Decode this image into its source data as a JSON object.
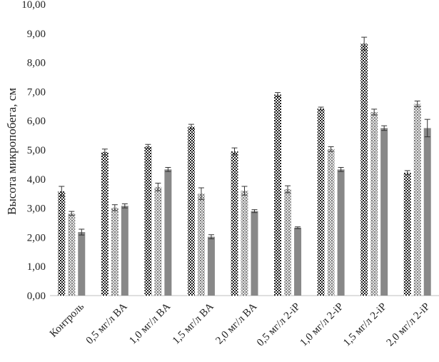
{
  "chart_data": {
    "type": "bar",
    "title": "",
    "xlabel": "",
    "ylabel": "Высота микропобега, см",
    "ylim": [
      0,
      10
    ],
    "yticks": [
      "0,00",
      "1,00",
      "2,00",
      "3,00",
      "4,00",
      "5,00",
      "6,00",
      "7,00",
      "8,00",
      "9,00",
      "10,00"
    ],
    "grid": false,
    "legend": "none",
    "categories": [
      "Контроль",
      "0,5 мг/л BA",
      "1,0 мг/л BA",
      "1,5 мг/л BA",
      "2,0 мг/л BA",
      "0,5 мг/л 2-iP",
      "1,0 мг/л 2-iP",
      "1,5 мг/л 2-iP",
      "2,0 мг/л 2-iP"
    ],
    "series": [
      {
        "pattern": "checker",
        "color": "#222222",
        "values": [
          3.58,
          4.93,
          5.12,
          5.8,
          4.95,
          6.9,
          6.42,
          8.65,
          4.22
        ],
        "errors": [
          0.17,
          0.1,
          0.07,
          0.08,
          0.12,
          0.07,
          0.05,
          0.22,
          0.07
        ]
      },
      {
        "pattern": "dotted",
        "color": "#777777",
        "values": [
          2.82,
          3.02,
          3.73,
          3.5,
          3.6,
          3.65,
          5.03,
          6.3,
          6.58
        ],
        "errors": [
          0.07,
          0.1,
          0.13,
          0.2,
          0.15,
          0.12,
          0.08,
          0.1,
          0.1
        ]
      },
      {
        "pattern": "solid",
        "color": "#888888",
        "values": [
          2.18,
          3.08,
          4.33,
          2.02,
          2.9,
          2.33,
          4.33,
          5.75,
          5.75
        ],
        "errors": [
          0.1,
          0.07,
          0.07,
          0.07,
          0.05,
          0.03,
          0.07,
          0.08,
          0.3
        ]
      }
    ]
  }
}
